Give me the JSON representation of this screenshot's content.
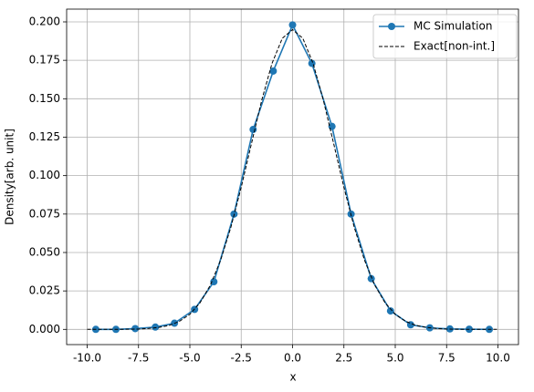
{
  "chart_data": {
    "type": "line",
    "xlabel": "x",
    "ylabel": "Density[arb. unit]",
    "xlim": [
      -11,
      11
    ],
    "ylim": [
      -0.0099,
      0.2083
    ],
    "xticks": [
      {
        "value": -10,
        "label": "-10.0"
      },
      -7.5,
      {
        "value": -5,
        "label": "-5.0"
      },
      -2.5,
      {
        "value": 0,
        "label": "0.0"
      },
      2.5,
      {
        "value": 5,
        "label": "5.0"
      },
      7.5,
      {
        "value": 10,
        "label": "10.0"
      }
    ],
    "yticks": [
      {
        "value": 0,
        "label": "0.000"
      },
      0.025,
      {
        "value": 0.05,
        "label": "0.050"
      },
      0.075,
      {
        "value": 0.1,
        "label": "0.100"
      },
      0.125,
      {
        "value": 0.15,
        "label": "0.150"
      },
      0.175,
      {
        "value": 0.2,
        "label": "0.200"
      }
    ],
    "grid": true,
    "legend": "upper right",
    "series": [
      {
        "name": "MC Simulation",
        "color": "#1f77b4",
        "marker": "circle",
        "linestyle": "solid",
        "x": [
          -9.58,
          -8.6,
          -7.66,
          -6.68,
          -5.75,
          -4.77,
          -3.83,
          -2.85,
          -1.92,
          -0.94,
          0,
          0.94,
          1.92,
          2.85,
          3.83,
          4.77,
          5.75,
          6.68,
          7.66,
          8.6,
          9.58
        ],
        "values": [
          0.0,
          0.0,
          0.0005,
          0.0015,
          0.004,
          0.013,
          0.031,
          0.075,
          0.13,
          0.168,
          0.198,
          0.173,
          0.132,
          0.075,
          0.033,
          0.012,
          0.003,
          0.001,
          0.0003,
          0.0001,
          0.0
        ]
      },
      {
        "name": "Exact[non-int.]",
        "color": "#000000",
        "marker": "none",
        "linestyle": "dashed",
        "x": [
          -10,
          -9.5,
          -9,
          -8.5,
          -8,
          -7.5,
          -7,
          -6.5,
          -6,
          -5.5,
          -5,
          -4.5,
          -4,
          -3.5,
          -3,
          -2.5,
          -2,
          -1.5,
          -1,
          -0.5,
          0,
          0.5,
          1,
          1.5,
          2,
          2.5,
          3,
          3.5,
          4,
          4.5,
          5,
          5.5,
          6,
          6.5,
          7,
          7.5,
          8,
          8.5,
          9,
          9.5,
          10
        ],
        "values": [
          0.0,
          0.0,
          0.0,
          0.0,
          0.0001,
          0.0002,
          0.0006,
          0.0013,
          0.0026,
          0.0053,
          0.0098,
          0.0174,
          0.0288,
          0.0451,
          0.0666,
          0.0924,
          0.1209,
          0.1491,
          0.173,
          0.1893,
          0.195,
          0.1893,
          0.173,
          0.1491,
          0.1209,
          0.0924,
          0.0666,
          0.0451,
          0.0288,
          0.0174,
          0.0098,
          0.0053,
          0.0026,
          0.0013,
          0.0006,
          0.0002,
          0.0001,
          0.0,
          0.0,
          0.0,
          0.0
        ]
      }
    ]
  }
}
